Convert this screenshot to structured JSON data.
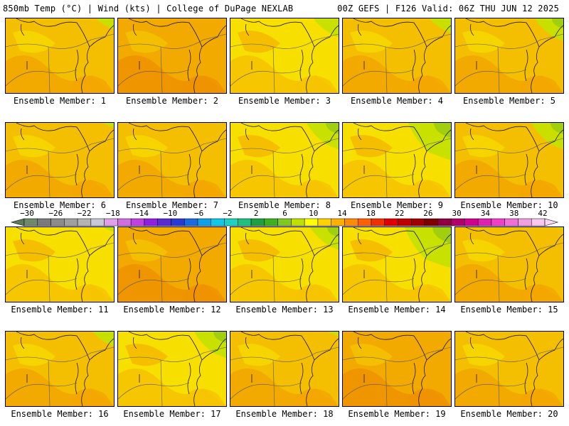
{
  "header": {
    "title_left": "850mb Temp (°C) | Wind (kts) | College of DuPage NEXLAB",
    "title_right": "00Z GEFS | F126 Valid: 06Z THU JUN 12 2025"
  },
  "colorbar": {
    "tick_labels": [
      "−30",
      "−26",
      "−22",
      "−18",
      "−14",
      "−10",
      "−6",
      "−2",
      "2",
      "6",
      "10",
      "14",
      "18",
      "22",
      "26",
      "30",
      "34",
      "38",
      "42"
    ],
    "colors": [
      "#6e8a6a",
      "#7a7a7a",
      "#8c8c8c",
      "#a0a0a0",
      "#b4b4b4",
      "#c8c8d8",
      "#e0a0e8",
      "#d070e0",
      "#c040e0",
      "#9020e0",
      "#5a2cd0",
      "#2a3ad0",
      "#1a6ae0",
      "#10a0e8",
      "#10c8e8",
      "#20d0c0",
      "#20c080",
      "#20a040",
      "#40b020",
      "#80c820",
      "#c0e000",
      "#ffff00",
      "#ffd200",
      "#ffb000",
      "#ff8c00",
      "#ff6000",
      "#f03000",
      "#e00000",
      "#c00000",
      "#a00000",
      "#800000",
      "#900040",
      "#b0006a",
      "#d00090",
      "#e020b0",
      "#f040c8",
      "#f070d8",
      "#f0a0e0",
      "#f8c8f0"
    ]
  },
  "panels": [
    {
      "label": "Ensemble Member: 1",
      "variant": "orange",
      "green": 0.25
    },
    {
      "label": "Ensemble Member: 2",
      "variant": "deep-orange",
      "green": 0.0
    },
    {
      "label": "Ensemble Member: 3",
      "variant": "yellow",
      "green": 0.35
    },
    {
      "label": "Ensemble Member: 4",
      "variant": "orange",
      "green": 0.3
    },
    {
      "label": "Ensemble Member: 5",
      "variant": "orange",
      "green": 0.4
    },
    {
      "label": "Ensemble Member: 6",
      "variant": "orange",
      "green": 0.15
    },
    {
      "label": "Ensemble Member: 7",
      "variant": "orange",
      "green": 0.0
    },
    {
      "label": "Ensemble Member: 8",
      "variant": "yellow",
      "green": 0.45
    },
    {
      "label": "Ensemble Member: 9",
      "variant": "yellow",
      "green": 0.6
    },
    {
      "label": "Ensemble Member: 10",
      "variant": "orange",
      "green": 0.45
    },
    {
      "label": "Ensemble Member: 11",
      "variant": "yellow",
      "green": 0.15
    },
    {
      "label": "Ensemble Member: 12",
      "variant": "deep-orange",
      "green": 0.0
    },
    {
      "label": "Ensemble Member: 13",
      "variant": "yellow",
      "green": 0.4
    },
    {
      "label": "Ensemble Member: 14",
      "variant": "yellow",
      "green": 0.65
    },
    {
      "label": "Ensemble Member: 15",
      "variant": "orange",
      "green": 0.1
    },
    {
      "label": "Ensemble Member: 16",
      "variant": "orange",
      "green": 0.3
    },
    {
      "label": "Ensemble Member: 17",
      "variant": "yellow",
      "green": 0.45
    },
    {
      "label": "Ensemble Member: 18",
      "variant": "orange",
      "green": 0.15
    },
    {
      "label": "Ensemble Member: 19",
      "variant": "deep-orange",
      "green": 0.0
    },
    {
      "label": "Ensemble Member: 20",
      "variant": "orange",
      "green": 0.0
    }
  ]
}
